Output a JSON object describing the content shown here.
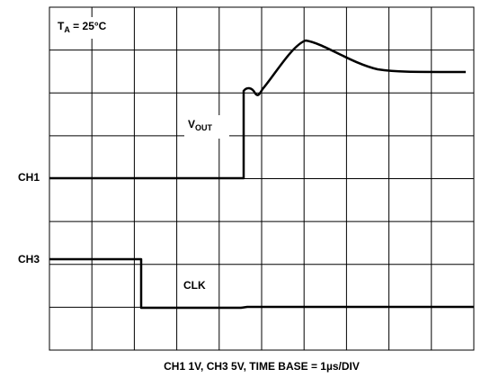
{
  "labels": {
    "condition": {
      "main": "T",
      "sub": "A",
      "rest": " = 25°C"
    },
    "vout": {
      "main": "V",
      "sub": "OUT"
    },
    "ch1": "CH1",
    "ch3": "CH3",
    "clk": "CLK",
    "caption": "CH1 1V, CH3 5V, TIME BASE = 1µs/DIV"
  }
}
